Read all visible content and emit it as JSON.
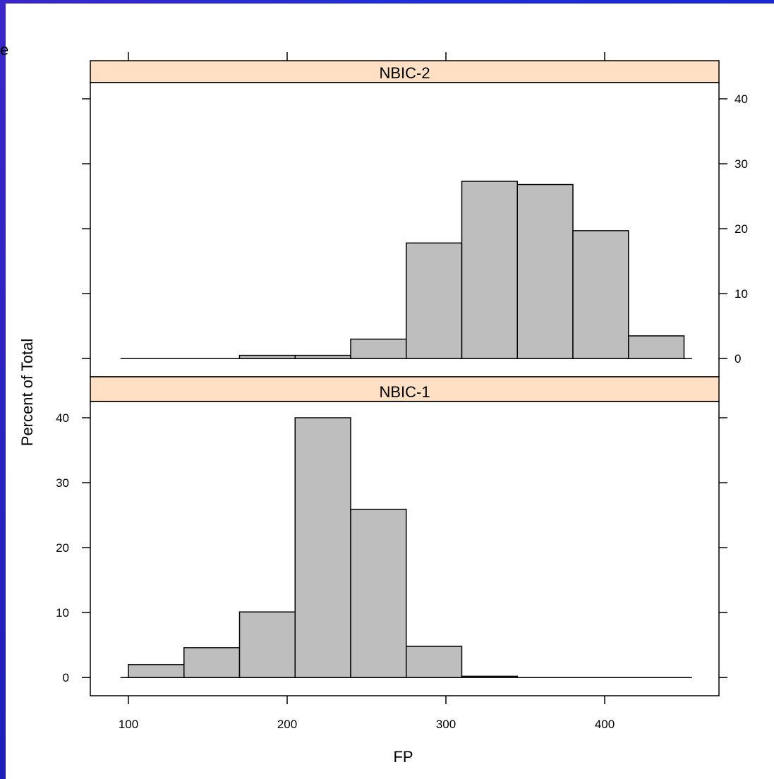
{
  "corner_fragment": "e",
  "chart_data": {
    "type": "bar",
    "xlabel": "FP",
    "ylabel": "Percent of Total",
    "xlim": [
      76,
      472
    ],
    "ylim": [
      -2.8,
      42.5
    ],
    "x_ticks": [
      100,
      200,
      300,
      400
    ],
    "y_ticks": [
      0,
      10,
      20,
      30,
      40
    ],
    "bin_edges": [
      100,
      135,
      170,
      205,
      240,
      275,
      310,
      345,
      380,
      415,
      450
    ],
    "axis_line_range": [
      95,
      455
    ],
    "panels": [
      {
        "name": "NBIC-2",
        "values": [
          0,
          0,
          0.5,
          0.5,
          3.0,
          17.8,
          27.3,
          26.8,
          19.7,
          3.5
        ]
      },
      {
        "name": "NBIC-1",
        "values": [
          2.0,
          4.6,
          10.1,
          40.0,
          25.9,
          4.8,
          0.2,
          0,
          0,
          0
        ]
      }
    ],
    "strip_color": "#ffe0c4",
    "bar_fill": "#bebebe",
    "bar_stroke": "#000000"
  }
}
